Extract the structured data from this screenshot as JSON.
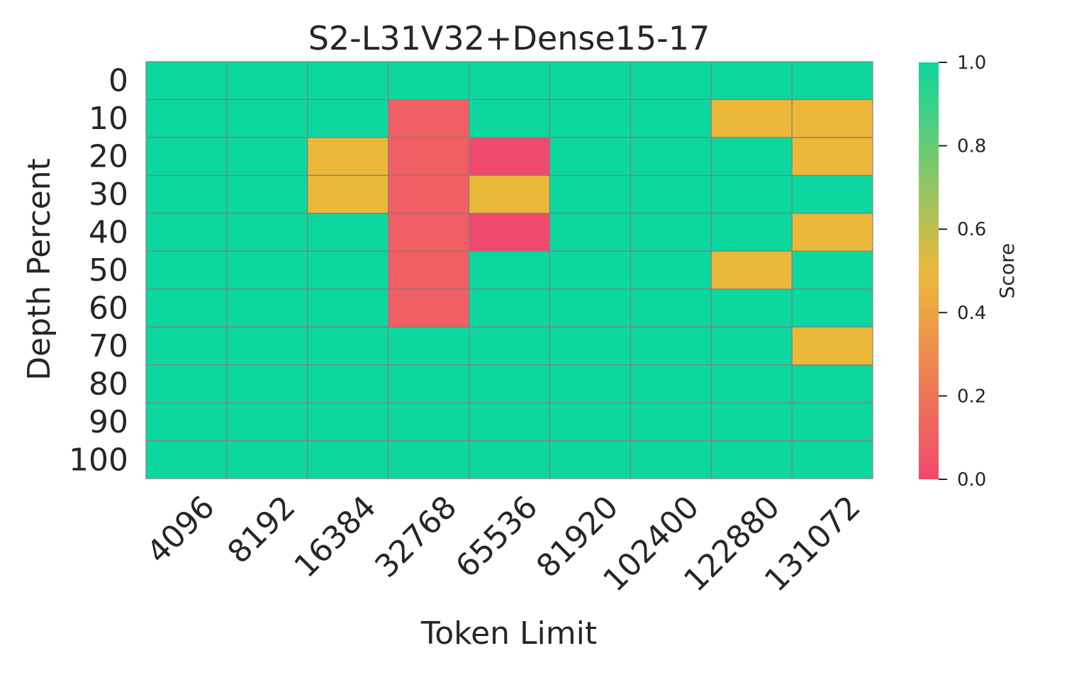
{
  "chart_data": {
    "type": "heatmap",
    "title": "S2-L31V32+Dense15-17",
    "xlabel": "Token Limit",
    "ylabel": "Depth Percent",
    "x_categories": [
      "4096",
      "8192",
      "16384",
      "32768",
      "65536",
      "81920",
      "102400",
      "122880",
      "131072"
    ],
    "y_categories": [
      "0",
      "10",
      "20",
      "30",
      "40",
      "50",
      "60",
      "70",
      "80",
      "90",
      "100"
    ],
    "values": [
      [
        1,
        1,
        1,
        1,
        1,
        1,
        1,
        1,
        1
      ],
      [
        1,
        1,
        1,
        0.1,
        1,
        1,
        1,
        0.5,
        0.5
      ],
      [
        1,
        1,
        0.5,
        0.1,
        0,
        1,
        1,
        1,
        0.5
      ],
      [
        1,
        1,
        0.5,
        0.1,
        0.5,
        1,
        1,
        1,
        1
      ],
      [
        1,
        1,
        1,
        0.1,
        0,
        1,
        1,
        1,
        0.5
      ],
      [
        1,
        1,
        1,
        0.1,
        1,
        1,
        1,
        0.5,
        1
      ],
      [
        1,
        1,
        1,
        0.1,
        1,
        1,
        1,
        1,
        1
      ],
      [
        1,
        1,
        1,
        1,
        1,
        1,
        1,
        1,
        0.5
      ],
      [
        1,
        1,
        1,
        1,
        1,
        1,
        1,
        1,
        1
      ],
      [
        1,
        1,
        1,
        1,
        1,
        1,
        1,
        1,
        1
      ],
      [
        1,
        1,
        1,
        1,
        1,
        1,
        1,
        1,
        1
      ]
    ],
    "colorbar": {
      "label": "Score",
      "range": [
        0,
        1
      ],
      "ticks": [
        "0.0",
        "0.2",
        "0.4",
        "0.6",
        "0.8",
        "1.0"
      ],
      "colors": [
        "#f0496e",
        "#ebb839",
        "#0cd79f"
      ]
    },
    "grid": true
  }
}
